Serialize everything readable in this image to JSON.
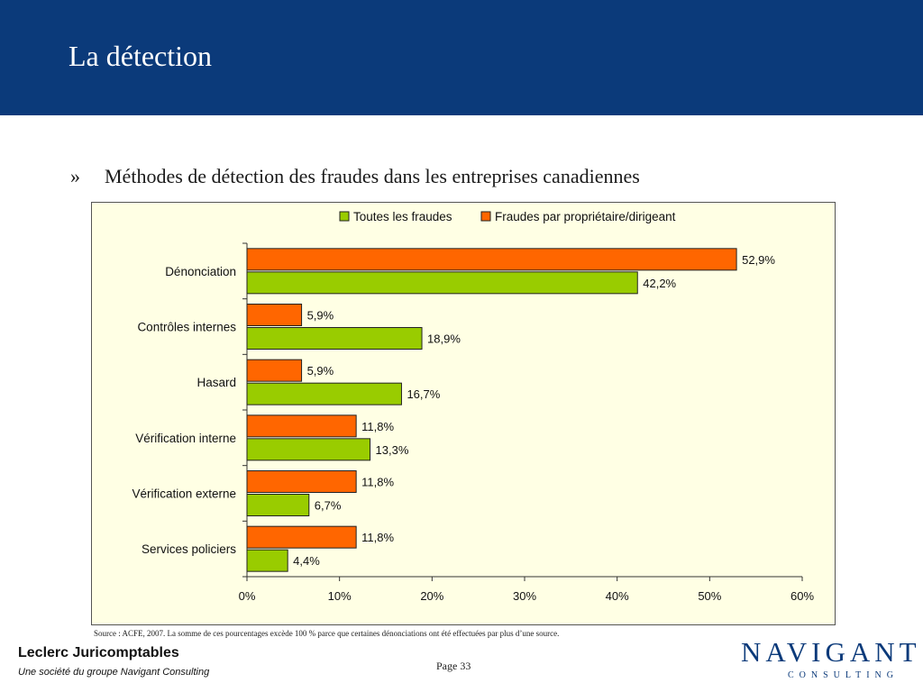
{
  "slide": {
    "title": "La détection",
    "bullet_symbol": "»",
    "subtitle": "Méthodes de détection des fraudes dans les entreprises canadiennes",
    "source_note": "Source : ACFE, 2007. La somme de ces pourcentages excède 100 % parce que certaines dénonciations ont été effectuées par plus  d’une source.",
    "page_label": "Page 33"
  },
  "footer": {
    "company": "Leclerc Juricomptables",
    "tagline": "Une société du groupe Navigant Consulting",
    "logo_main": "NAVIGANT",
    "logo_sub": "CONSULTING"
  },
  "colors": {
    "header_bg": "#0b3a7a",
    "chart_bg": "#ffffe4",
    "series_all": "#99cc00",
    "series_owner": "#ff6600"
  },
  "chart_data": {
    "type": "bar",
    "orientation": "horizontal",
    "categories": [
      "Dénonciation",
      "Contrôles internes",
      "Hasard",
      "Vérification interne",
      "Vérification externe",
      "Services policiers"
    ],
    "series": [
      {
        "name": "Fraudes par propriétaire/dirigeant",
        "values": [
          52.9,
          5.9,
          5.9,
          11.8,
          11.8,
          11.8
        ],
        "labels": [
          "52,9%",
          "5,9%",
          "5,9%",
          "11,8%",
          "11,8%",
          "11,8%"
        ]
      },
      {
        "name": "Toutes les fraudes",
        "values": [
          42.2,
          18.9,
          16.7,
          13.3,
          6.7,
          4.4
        ],
        "labels": [
          "42,2%",
          "18,9%",
          "16,7%",
          "13,3%",
          "6,7%",
          "4,4%"
        ]
      }
    ],
    "legend": [
      "Toutes les fraudes",
      "Fraudes par propriétaire/dirigeant"
    ],
    "xlim": [
      0,
      60
    ],
    "xticks": [
      "0%",
      "10%",
      "20%",
      "30%",
      "40%",
      "50%",
      "60%"
    ],
    "legend_position": "top",
    "grid": false
  }
}
